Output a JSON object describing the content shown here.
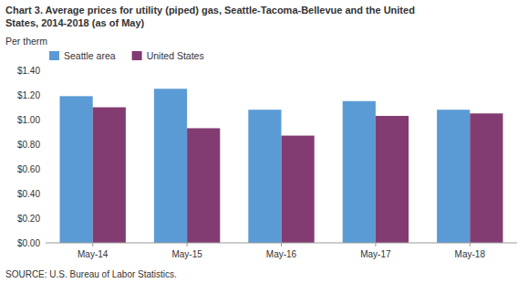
{
  "chart_data": {
    "type": "bar",
    "title": [
      "Chart 3. Average prices for utility (piped) gas, Seattle-Tacoma-Bellevue and the United",
      "States, 2014-2018  (as of May)"
    ],
    "ylabel": "Per therm",
    "source": "SOURCE: U.S. Bureau of Labor Statistics.",
    "categories": [
      "May-14",
      "May-15",
      "May-16",
      "May-17",
      "May-18"
    ],
    "series": [
      {
        "name": "Seattle area",
        "color": "#5B9BD5",
        "values": [
          1.19,
          1.25,
          1.08,
          1.15,
          1.08
        ]
      },
      {
        "name": "United States",
        "color": "#833C72",
        "values": [
          1.1,
          0.93,
          0.87,
          1.03,
          1.05
        ]
      }
    ],
    "ylim": [
      0.0,
      1.4
    ],
    "yticks": [
      {
        "value": 0.0,
        "label": "$0.00"
      },
      {
        "value": 0.2,
        "label": "$0.20"
      },
      {
        "value": 0.4,
        "label": "$0.40"
      },
      {
        "value": 0.6,
        "label": "$0.60"
      },
      {
        "value": 0.8,
        "label": "$0.80"
      },
      {
        "value": 1.0,
        "label": "$1.00"
      },
      {
        "value": 1.2,
        "label": "$1.20"
      },
      {
        "value": 1.4,
        "label": "$1.40"
      }
    ],
    "grid": false,
    "legend": "upper left"
  }
}
